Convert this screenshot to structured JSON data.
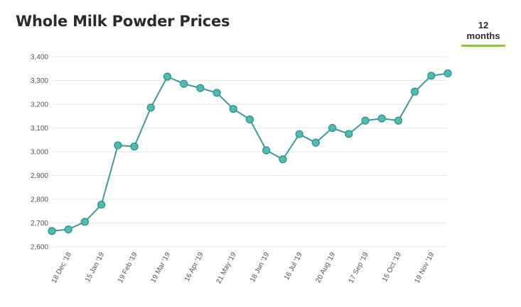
{
  "header": {
    "title": "Whole Milk Powder Prices",
    "tab_label": "12 months"
  },
  "chart_data": {
    "type": "line",
    "title": "Whole Milk Powder Prices",
    "xlabel": "",
    "ylabel": "",
    "ylim": [
      2600,
      3400
    ],
    "yticks": [
      2600,
      2700,
      2800,
      2900,
      3000,
      3100,
      3200,
      3300,
      3400
    ],
    "ytick_labels": [
      "2,600",
      "2,700",
      "2,800",
      "2,900",
      "3,000",
      "3,100",
      "3,200",
      "3,300",
      "3,400"
    ],
    "x_tick_labels": [
      "18 Dec '18",
      "15 Jan '19",
      "19 Feb '19",
      "19 Mar '19",
      "16 Apr '19",
      "21 May '19",
      "18 Jun '19",
      "16 Jul '19",
      "20 Aug '19",
      "17 Sep '19",
      "15 Oct '19",
      "19 Nov '19"
    ],
    "x_tick_point_index": [
      1,
      3,
      5,
      7,
      9,
      11,
      13,
      15,
      17,
      19,
      21,
      23
    ],
    "grid": true,
    "line_color": "#3a9e98",
    "marker_color": "#4dbdb3",
    "series": [
      {
        "values": [
          2666,
          2673,
          2705,
          2777,
          3027,
          3022,
          3186,
          3316,
          3286,
          3268,
          3248,
          3180,
          3136,
          3006,
          2968,
          3074,
          3038,
          3100,
          3075,
          3131,
          3140,
          3131,
          3253,
          3320,
          3330
        ]
      }
    ]
  }
}
